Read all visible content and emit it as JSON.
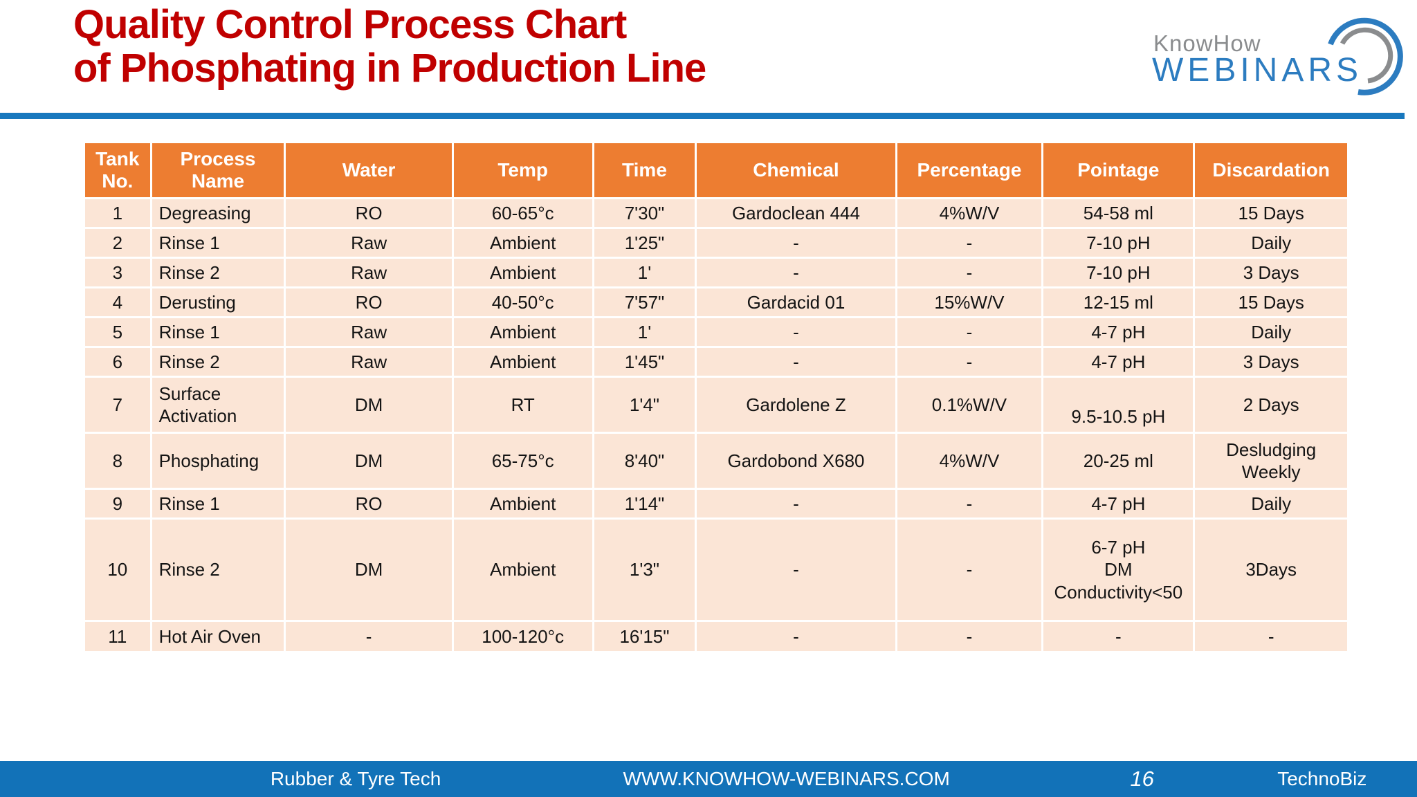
{
  "slide_title": {
    "line1": "Quality Control Process Chart",
    "line2": "of Phosphating in Production Line"
  },
  "logo": {
    "top_text": "KnowHow",
    "bottom_text": "WEBINARS"
  },
  "chart_data": {
    "type": "table",
    "columns": [
      "Tank\nNo.",
      "Process\nName",
      "Water",
      "Temp",
      "Time",
      "Chemical",
      "Percentage",
      "Pointage",
      "Discardation"
    ],
    "rows": [
      [
        "1",
        "Degreasing",
        "RO",
        "60-65°c",
        "7'30\"",
        "Gardoclean 444",
        "4%W/V",
        "54-58 ml",
        "15 Days"
      ],
      [
        "2",
        "Rinse 1",
        "Raw",
        "Ambient",
        "1'25\"",
        "-",
        "-",
        "7-10 pH",
        "Daily"
      ],
      [
        "3",
        "Rinse 2",
        "Raw",
        "Ambient",
        "1'",
        "-",
        "-",
        "7-10 pH",
        "3 Days"
      ],
      [
        "4",
        "Derusting",
        "RO",
        "40-50°c",
        "7'57\"",
        "Gardacid 01",
        "15%W/V",
        "12-15 ml",
        "15 Days"
      ],
      [
        "5",
        "Rinse 1",
        "Raw",
        "Ambient",
        "1'",
        "-",
        "-",
        "4-7 pH",
        "Daily"
      ],
      [
        "6",
        "Rinse 2",
        "Raw",
        "Ambient",
        "1'45\"",
        "-",
        "-",
        "4-7 pH",
        "3 Days"
      ],
      [
        "7",
        "Surface\nActivation",
        "DM",
        "RT",
        "1'4\"",
        "Gardolene Z",
        "0.1%W/V",
        "9.5-10.5 pH",
        "2 Days"
      ],
      [
        "8",
        "Phosphating",
        "DM",
        "65-75°c",
        "8'40\"",
        "Gardobond X680",
        "4%W/V",
        "20-25 ml",
        "Desludging\nWeekly"
      ],
      [
        "9",
        "Rinse 1",
        "RO",
        "Ambient",
        "1'14\"",
        "-",
        "-",
        "4-7 pH",
        "Daily"
      ],
      [
        "10",
        "Rinse 2",
        "DM",
        "Ambient",
        "1'3\"",
        "-",
        "-",
        "6-7 pH\nDM\nConductivity<50",
        "3Days"
      ],
      [
        "11",
        "Hot Air Oven",
        "-",
        "100-120°c",
        "16'15\"",
        "-",
        "-",
        "-",
        "-"
      ]
    ]
  },
  "footer": {
    "left": "Rubber & Tyre Tech",
    "website": "WWW.KNOWHOW-WEBINARS.COM",
    "page_number": "16",
    "right": "TechnoBiz"
  },
  "colors": {
    "title_red": "#C00000",
    "header_orange": "#ED7D31",
    "row_peach": "#FBE5D6",
    "accent_blue": "#1878BE",
    "footer_blue": "#1272B8",
    "logo_gray": "#8A8C8E",
    "logo_blue": "#2C7CC0"
  }
}
